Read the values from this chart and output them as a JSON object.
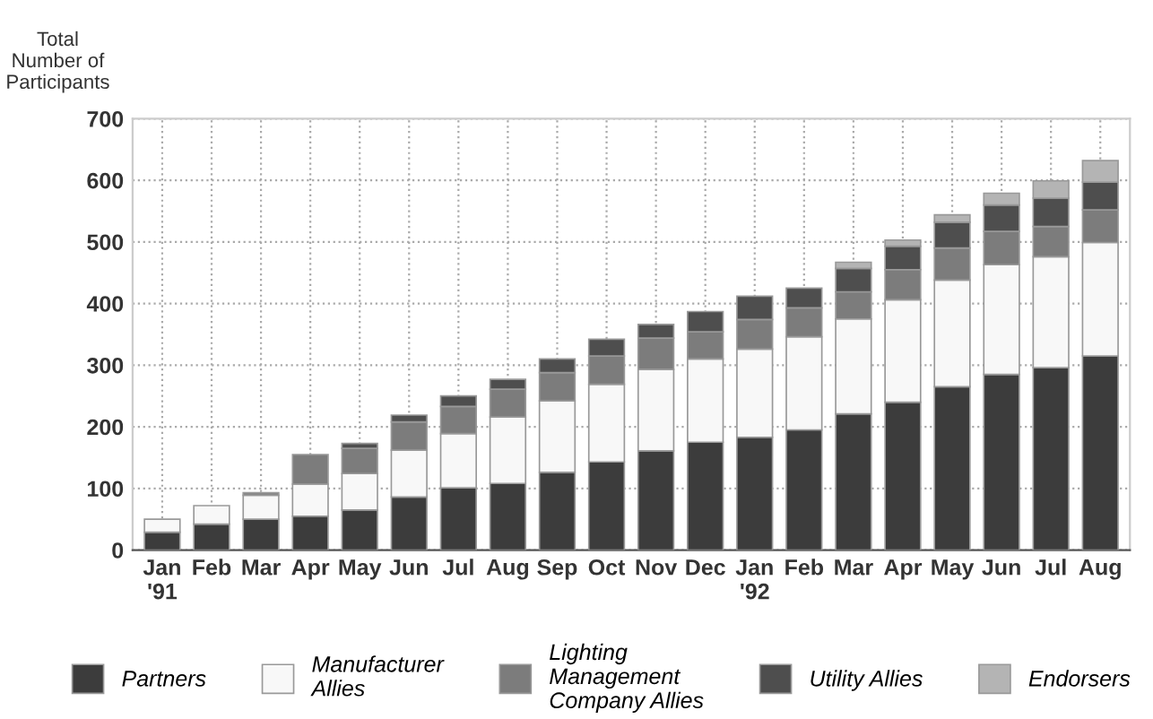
{
  "chart_data": {
    "type": "bar",
    "stacked": true,
    "ylabel": "Total\nNumber of\nParticipants",
    "categories": [
      "Jan\n'91",
      "Feb",
      "Mar",
      "Apr",
      "May",
      "Jun",
      "Jul",
      "Aug",
      "Sep",
      "Oct",
      "Nov",
      "Dec",
      "Jan\n'92",
      "Feb",
      "Mar",
      "Apr",
      "May",
      "Jun",
      "Jul",
      "Aug"
    ],
    "series": [
      {
        "name": "Partners",
        "color": "#3c3c3c",
        "values": [
          29,
          42,
          50,
          55,
          65,
          86,
          101,
          108,
          126,
          143,
          161,
          175,
          183,
          195,
          221,
          240,
          265,
          285,
          296,
          315
        ]
      },
      {
        "name": "Manufacturer\nAllies",
        "color": "#f8f8f8",
        "values": [
          21,
          30,
          39,
          52,
          59,
          76,
          88,
          108,
          116,
          126,
          132,
          135,
          143,
          151,
          154,
          166,
          173,
          178,
          180,
          184
        ]
      },
      {
        "name": "Lighting\nManagement\nCompany Allies",
        "color": "#7c7c7c",
        "values": [
          null,
          null,
          4,
          48,
          41,
          46,
          44,
          45,
          46,
          46,
          51,
          44,
          48,
          47,
          44,
          49,
          52,
          54,
          49,
          53
        ]
      },
      {
        "name": "Utility Allies",
        "color": "#4e4e4e",
        "values": [
          null,
          null,
          null,
          null,
          8,
          11,
          17,
          16,
          22,
          27,
          22,
          33,
          38,
          32,
          38,
          38,
          42,
          43,
          46,
          45
        ]
      },
      {
        "name": "Endorsers",
        "color": "#b4b4b4",
        "values": [
          null,
          null,
          null,
          null,
          null,
          null,
          null,
          null,
          null,
          null,
          null,
          null,
          null,
          null,
          10,
          10,
          12,
          19,
          28,
          35
        ]
      }
    ],
    "ylim": [
      0,
      700
    ],
    "yticks": [
      0,
      100,
      200,
      300,
      400,
      500,
      600,
      700
    ],
    "grid": true,
    "legend": "bottom"
  }
}
